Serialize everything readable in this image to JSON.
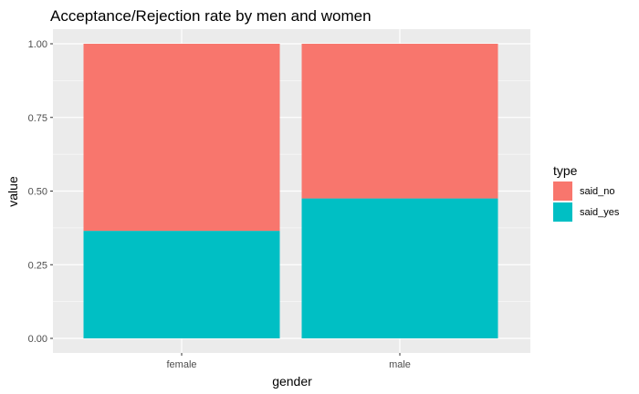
{
  "chart_data": {
    "type": "bar",
    "stacked": true,
    "title": "Acceptance/Rejection rate by men and women",
    "xlabel": "gender",
    "ylabel": "value",
    "categories": [
      "female",
      "male"
    ],
    "series": [
      {
        "name": "said_yes",
        "values": [
          0.365,
          0.475
        ],
        "color": "#00BFC4"
      },
      {
        "name": "said_no",
        "values": [
          0.635,
          0.525
        ],
        "color": "#F8766D"
      }
    ],
    "ylim": [
      0,
      1
    ],
    "yticks": [
      0,
      0.25,
      0.5,
      0.75,
      1
    ],
    "ytick_labels": [
      "0.00",
      "0.25",
      "0.50",
      "0.75",
      "1.00"
    ],
    "grid": true,
    "panel_background": "#EBEBEB",
    "legend": {
      "title": "type",
      "position": "right",
      "entries": [
        {
          "label": "said_no",
          "color": "#F8766D"
        },
        {
          "label": "said_yes",
          "color": "#00BFC4"
        }
      ]
    }
  }
}
